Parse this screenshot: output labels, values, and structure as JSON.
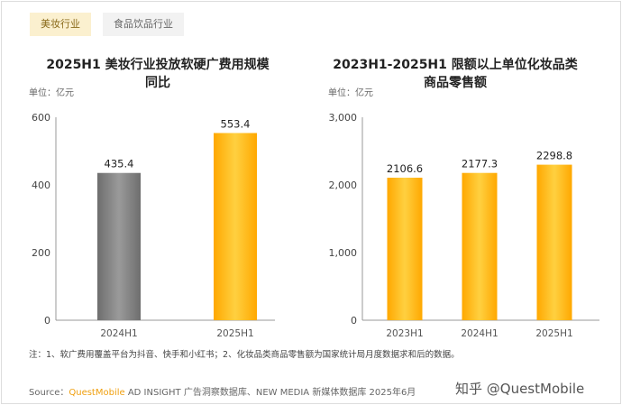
{
  "tabs": [
    {
      "label": "美妆行业",
      "active": true
    },
    {
      "label": "食品饮品行业",
      "active": false
    }
  ],
  "chart_data": [
    {
      "type": "bar",
      "title": "2025H1 美妆行业投放软硬广费用规模同比",
      "title_lines": [
        "2025H1 美妆行业投放软硬广费用规模",
        "同比"
      ],
      "unit": "单位：亿元",
      "categories": [
        "2024H1",
        "2025H1"
      ],
      "values": [
        435.4,
        553.4
      ],
      "labels": [
        "435.4",
        "553.4"
      ],
      "ylim": [
        0,
        600
      ],
      "yticks": [
        0,
        200,
        400,
        600
      ],
      "ytick_labels": [
        "0",
        "200",
        "400",
        "600"
      ],
      "colors": [
        "#8a8a8a",
        "#ffb400"
      ]
    },
    {
      "type": "bar",
      "title": "2023H1-2025H1 限额以上单位化妆品类商品零售额",
      "title_lines": [
        "2023H1-2025H1 限额以上单位化妆品类",
        "商品零售额"
      ],
      "unit": "单位：亿元",
      "categories": [
        "2023H1",
        "2024H1",
        "2025H1"
      ],
      "values": [
        2106.6,
        2177.3,
        2298.8
      ],
      "labels": [
        "2106.6",
        "2177.3",
        "2298.8"
      ],
      "ylim": [
        0,
        3000
      ],
      "yticks": [
        0,
        1000,
        2000,
        3000
      ],
      "ytick_labels": [
        "0",
        "1,000",
        "2,000",
        "3,000"
      ],
      "colors": [
        "#ffb400",
        "#ffb400",
        "#ffb400"
      ]
    }
  ],
  "note": "注：1、软广费用覆盖平台为抖音、快手和小红书；2、化妆品类商品零售额为国家统计局月度数据求和后的数据。",
  "source": {
    "prefix": "Source：",
    "brand": "QuestMobile",
    "rest": " AD INSIGHT 广告洞察数据库、NEW MEDIA 新媒体数据库 2025年6月"
  },
  "watermark": "知乎 @QuestMobile"
}
